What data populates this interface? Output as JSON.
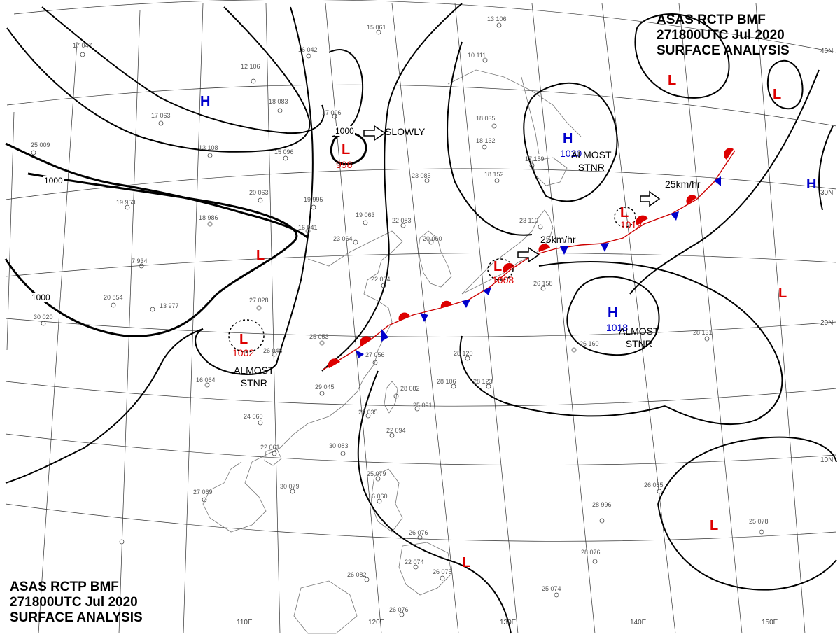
{
  "header": {
    "line1": "ASAS RCTP BMF",
    "line2": "271800UTC Jul 2020",
    "line3": "SURFACE ANALYSIS"
  },
  "footer": {
    "line1": "ASAS RCTP BMF",
    "line2": "271800UTC Jul 2020",
    "line3": "SURFACE ANALYSIS"
  },
  "lat_labels": [
    "40N",
    "30N",
    "20N",
    "10N"
  ],
  "lon_labels": [
    "110E",
    "120E",
    "130E",
    "140E",
    "150E"
  ],
  "pressure_centers": [
    {
      "type": "H",
      "value": ""
    },
    {
      "type": "L",
      "value": "998"
    },
    {
      "type": "L",
      "value": ""
    },
    {
      "type": "L",
      "value": "1002"
    },
    {
      "type": "L",
      "value": "1008"
    },
    {
      "type": "H",
      "value": "1020"
    },
    {
      "type": "L",
      "value": "1012"
    },
    {
      "type": "H",
      "value": "1018"
    },
    {
      "type": "L",
      "value": ""
    },
    {
      "type": "L",
      "value": ""
    },
    {
      "type": "L",
      "value": ""
    },
    {
      "type": "H",
      "value": ""
    },
    {
      "type": "L",
      "value": ""
    },
    {
      "type": "L",
      "value": ""
    }
  ],
  "annotations": {
    "slowly": "SLOWLY",
    "almost_stnr_ne": [
      "ALMOST",
      "STNR"
    ],
    "almost_stnr_e": [
      "ALMOST",
      "STNR"
    ],
    "almost_stnr_sw": [
      "ALMOST",
      "STNR"
    ],
    "speed_front_w": "25km/hr",
    "speed_front_e": "25km/hr"
  },
  "isobar_labels": {
    "west": "1000",
    "northwest": "1000",
    "low_center": "1000"
  },
  "station_plots": [
    "17 047",
    "12 106",
    "18 083",
    "15 061",
    "16 042",
    "17 006",
    "10 111",
    "13 106",
    "25 009",
    "17 063",
    "13 108",
    "15 096",
    "20 063",
    "19 995",
    "16 041",
    "23 064",
    "19 063",
    "22 083",
    "20 060",
    "18 035",
    "18 132",
    "18 152",
    "23 085",
    "19 953",
    "18 986",
    "7 934",
    "20 854",
    "13 977",
    "30 020",
    "27 028",
    "25 053",
    "26 048",
    "27 056",
    "22 064",
    "16 064",
    "29 045",
    "28 082",
    "22 035",
    "28 120",
    "28 106",
    "28 123",
    "24 060",
    "22 061",
    "30 083",
    "25 091",
    "22 094",
    "27 069",
    "30 079",
    "25 079",
    "16 060",
    "26 076",
    "22 074",
    "26 082",
    "26 075",
    "26 076",
    "25 074",
    "28 996",
    "28 076",
    "26 085",
    "25 078",
    "26 158",
    "26 160",
    "28 131",
    "17 159",
    "23 110"
  ]
}
